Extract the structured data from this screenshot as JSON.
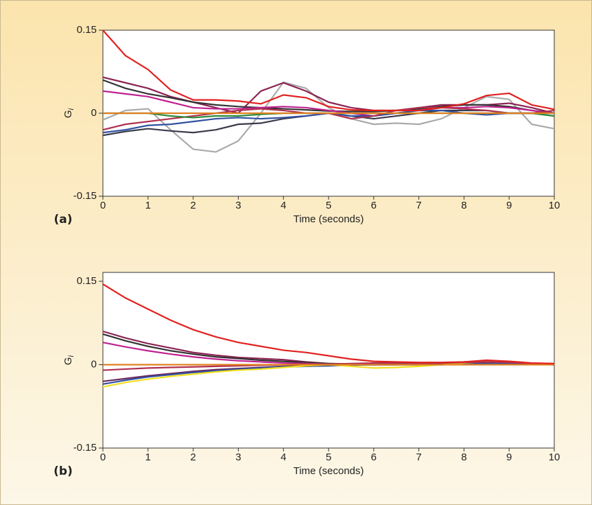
{
  "chart_data": [
    {
      "type": "line",
      "panel_label": "(a)",
      "xlabel": "Time (seconds)",
      "ylabel": {
        "main": "G",
        "sub": "i"
      },
      "x": [
        0,
        0.5,
        1,
        1.5,
        2,
        2.5,
        3,
        3.5,
        4,
        4.5,
        5,
        5.5,
        6,
        6.5,
        7,
        7.5,
        8,
        8.5,
        9,
        9.5,
        10
      ],
      "xlim": [
        0,
        10
      ],
      "xticks": [
        0,
        1,
        2,
        3,
        4,
        5,
        6,
        7,
        8,
        9,
        10
      ],
      "ylim": [
        -0.15,
        0.15
      ],
      "yticks": [
        -0.15,
        0,
        0.15
      ],
      "series": [
        {
          "color": "#aaaaaa",
          "values": [
            -0.012,
            0.005,
            0.008,
            -0.03,
            -0.065,
            -0.07,
            -0.05,
            0.0,
            0.056,
            0.045,
            0.01,
            -0.01,
            -0.02,
            -0.018,
            -0.02,
            -0.01,
            0.01,
            0.03,
            0.025,
            -0.02,
            -0.028
          ]
        },
        {
          "color": "#8b2252",
          "values": [
            0.065,
            0.055,
            0.045,
            0.03,
            0.02,
            0.01,
            0.0,
            0.04,
            0.055,
            0.04,
            0.02,
            0.01,
            0.005,
            0.005,
            0.01,
            0.015,
            0.015,
            0.015,
            0.018,
            0.01,
            0.0
          ]
        },
        {
          "color": "#333333",
          "values": [
            0.06,
            0.045,
            0.035,
            0.028,
            0.02,
            0.015,
            0.012,
            0.01,
            0.008,
            0.006,
            0.004,
            0.003,
            0.003,
            0.005,
            0.008,
            0.012,
            0.015,
            0.015,
            0.012,
            0.005,
            0.0
          ]
        },
        {
          "color": "#c02090",
          "values": [
            0.04,
            0.035,
            0.03,
            0.02,
            0.01,
            0.008,
            0.008,
            0.01,
            0.012,
            0.01,
            0.005,
            0.0,
            -0.005,
            0.0,
            0.005,
            0.01,
            0.01,
            0.012,
            0.01,
            0.005,
            0.0
          ]
        },
        {
          "color": "#3a3a4a",
          "values": [
            -0.04,
            -0.033,
            -0.028,
            -0.032,
            -0.035,
            -0.03,
            -0.02,
            -0.018,
            -0.01,
            -0.005,
            0.0,
            -0.005,
            -0.01,
            -0.005,
            0.0,
            0.005,
            0.005,
            0.005,
            0.0,
            0.0,
            -0.005
          ]
        },
        {
          "color": "#3050a0",
          "values": [
            -0.035,
            -0.03,
            -0.022,
            -0.02,
            -0.015,
            -0.01,
            -0.008,
            -0.01,
            -0.008,
            -0.005,
            0.0,
            -0.005,
            -0.005,
            0.0,
            0.005,
            0.005,
            0.0,
            -0.003,
            0.0,
            0.0,
            0.0
          ]
        },
        {
          "color": "#b03050",
          "values": [
            -0.03,
            -0.02,
            -0.015,
            -0.01,
            -0.005,
            0.0,
            0.005,
            0.008,
            0.005,
            0.0,
            0.0,
            -0.01,
            -0.005,
            0.005,
            0.01,
            0.01,
            0.008,
            0.005,
            0.0,
            0.0,
            0.005
          ]
        },
        {
          "color": "#2a8a3a",
          "values": [
            0.0,
            0.0,
            0.0,
            -0.005,
            -0.008,
            -0.005,
            -0.005,
            -0.002,
            0.0,
            0.0,
            0.0,
            0.0,
            0.0,
            0.0,
            0.0,
            0.0,
            0.0,
            0.0,
            0.0,
            0.0,
            -0.005
          ]
        },
        {
          "color": "#e08020",
          "values": [
            0,
            0,
            0,
            0,
            0,
            0,
            0,
            0,
            0,
            0,
            0,
            0,
            0,
            0,
            0,
            0,
            0,
            0,
            0,
            0,
            0
          ]
        },
        {
          "color": "#e0201e",
          "values": [
            0.15,
            0.104,
            0.079,
            0.042,
            0.024,
            0.024,
            0.022,
            0.017,
            0.033,
            0.028,
            0.012,
            0.006,
            0.005,
            0.005,
            0.005,
            0.01,
            0.017,
            0.032,
            0.036,
            0.015,
            0.007
          ]
        }
      ]
    },
    {
      "type": "line",
      "panel_label": "(b)",
      "xlabel": "Time (seconds)",
      "ylabel": {
        "main": "G",
        "sub": "i"
      },
      "x": [
        0,
        0.5,
        1,
        1.5,
        2,
        2.5,
        3,
        3.5,
        4,
        4.5,
        5,
        5.5,
        6,
        6.5,
        7,
        7.5,
        8,
        8.5,
        9,
        9.5,
        10
      ],
      "xlim": [
        0,
        10
      ],
      "xticks": [
        0,
        1,
        2,
        3,
        4,
        5,
        6,
        7,
        8,
        9,
        10
      ],
      "ylim": [
        -0.15,
        0.166
      ],
      "yticks": [
        -0.15,
        0,
        0.15
      ],
      "series": [
        {
          "color": "#8b2252",
          "values": [
            0.06,
            0.048,
            0.038,
            0.03,
            0.022,
            0.017,
            0.013,
            0.011,
            0.009,
            0.005,
            0.002,
            0.001,
            0.0,
            0.001,
            0.002,
            0.003,
            0.005,
            0.006,
            0.005,
            0.002,
            0.0
          ]
        },
        {
          "color": "#333333",
          "values": [
            0.055,
            0.043,
            0.033,
            0.025,
            0.019,
            0.014,
            0.011,
            0.008,
            0.006,
            0.004,
            0.002,
            0.001,
            0.0,
            0.0,
            0.001,
            0.002,
            0.004,
            0.006,
            0.005,
            0.002,
            0.0
          ]
        },
        {
          "color": "#c02090",
          "values": [
            0.04,
            0.032,
            0.025,
            0.019,
            0.014,
            0.01,
            0.007,
            0.005,
            0.003,
            0.002,
            0.001,
            0.0,
            0.0,
            0.0,
            0.001,
            0.002,
            0.003,
            0.004,
            0.003,
            0.001,
            0.0
          ]
        },
        {
          "color": "#6a2a60",
          "values": [
            -0.03,
            -0.025,
            -0.02,
            -0.016,
            -0.012,
            -0.009,
            -0.007,
            -0.005,
            -0.003,
            -0.002,
            -0.001,
            0,
            0,
            0,
            0,
            0.001,
            0.002,
            0.003,
            0.003,
            0.001,
            0
          ]
        },
        {
          "color": "#3050a0",
          "values": [
            -0.035,
            -0.028,
            -0.022,
            -0.018,
            -0.014,
            -0.011,
            -0.008,
            -0.006,
            -0.004,
            -0.003,
            -0.002,
            -0.001,
            0,
            0,
            0,
            0,
            0.001,
            0.002,
            0.002,
            0.001,
            0
          ]
        },
        {
          "color": "#f0e020",
          "values": [
            -0.04,
            -0.032,
            -0.026,
            -0.021,
            -0.017,
            -0.013,
            -0.01,
            -0.008,
            -0.005,
            -0.002,
            0,
            -0.003,
            -0.006,
            -0.005,
            -0.003,
            0,
            0.003,
            0.006,
            0.006,
            0.002,
            0
          ]
        },
        {
          "color": "#b03050",
          "values": [
            -0.01,
            -0.008,
            -0.006,
            -0.005,
            -0.004,
            -0.003,
            -0.002,
            -0.001,
            0,
            0.001,
            0.001,
            0.002,
            0.003,
            0.003,
            0.003,
            0.003,
            0.004,
            0.005,
            0.004,
            0.002,
            0.001
          ]
        },
        {
          "color": "#e08020",
          "values": [
            0,
            0,
            0,
            0,
            0,
            0,
            0,
            0,
            0,
            0,
            0,
            0,
            0,
            0,
            0,
            0,
            0,
            0,
            0,
            0,
            0
          ]
        },
        {
          "color": "#e0201e",
          "values": [
            0.145,
            0.12,
            0.1,
            0.08,
            0.063,
            0.05,
            0.04,
            0.033,
            0.026,
            0.022,
            0.016,
            0.01,
            0.006,
            0.005,
            0.004,
            0.004,
            0.005,
            0.008,
            0.006,
            0.003,
            0.002
          ]
        }
      ]
    }
  ]
}
